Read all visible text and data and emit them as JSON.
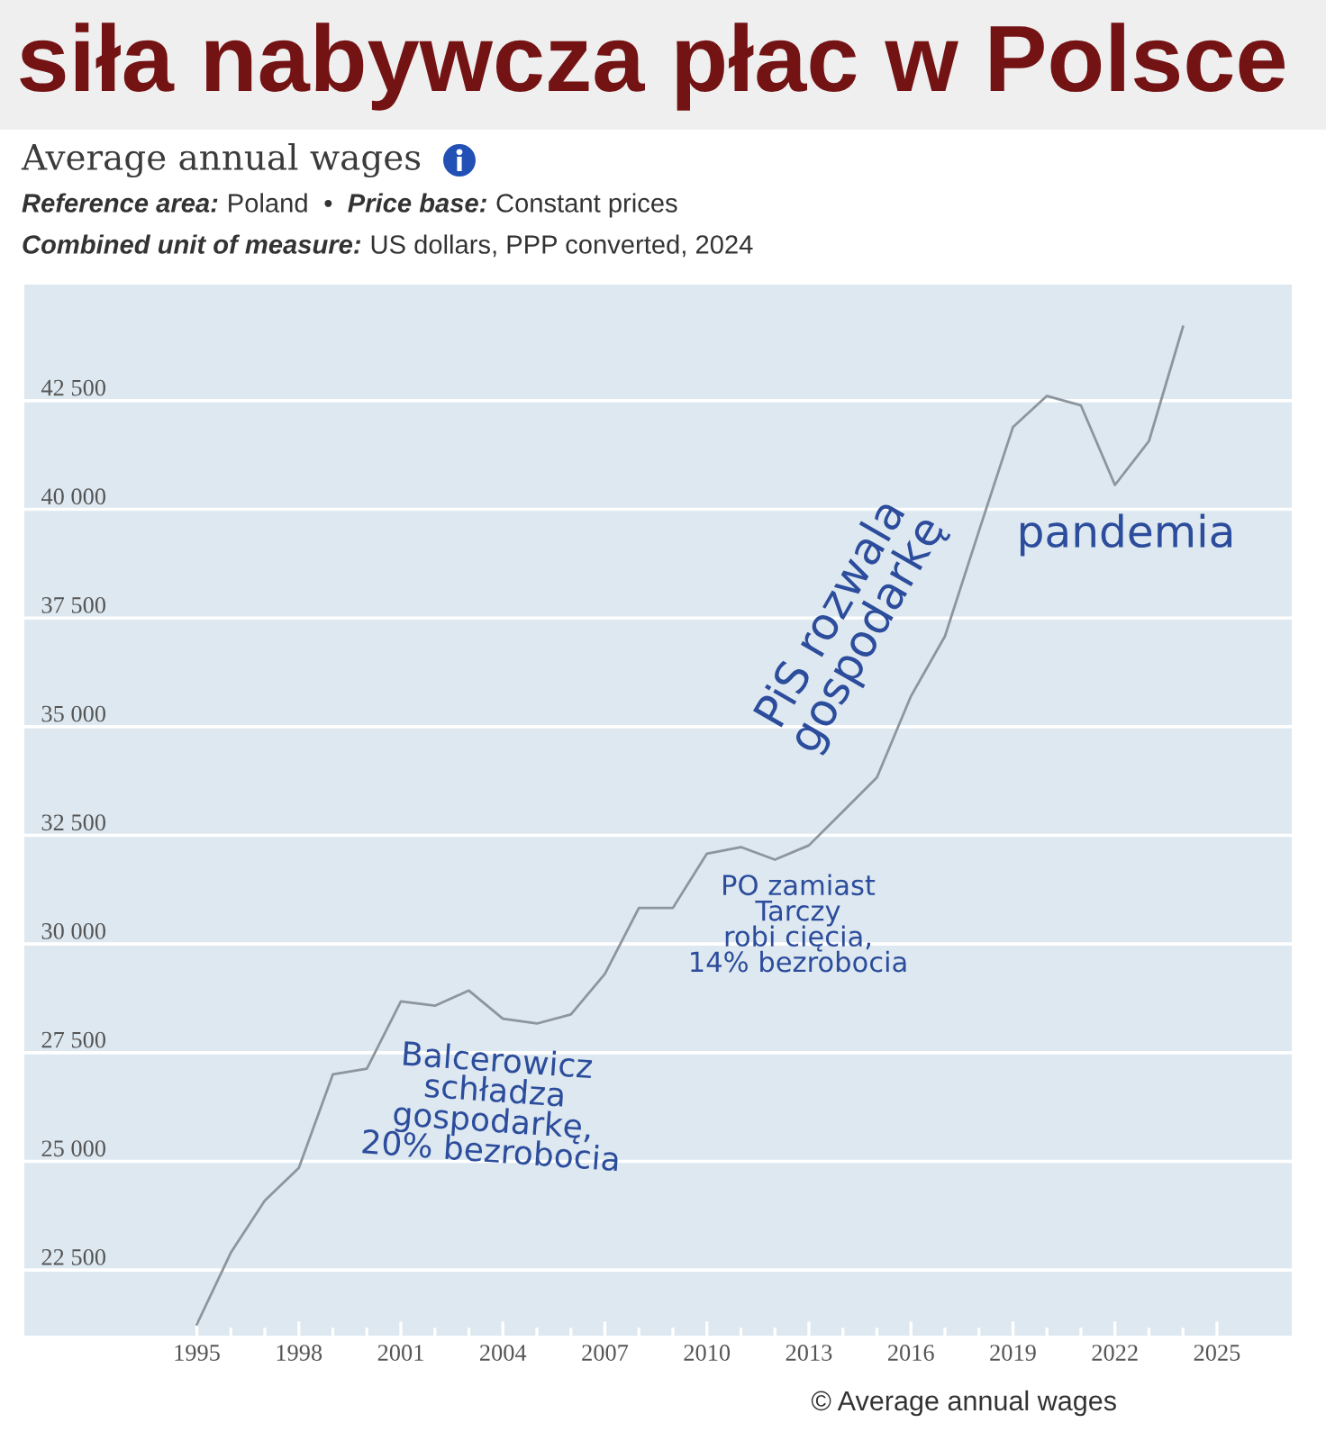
{
  "chart_data": {
    "type": "line",
    "title": "siła nabywcza płac w Polsce",
    "subtitle": "Average annual wages",
    "annotations": [
      "Reference area: Poland • Price base: Constant prices",
      "Combined unit of measure: US dollars, PPP converted, 2024",
      "Balcerowicz\nschładza\ngospodarkę,\n20% bezrobocia",
      "PO zamiast\nTarczy\nrobi cięcia,\n14% bezrobocia",
      "PiS rozwala\ngospodarkę",
      "pandemia",
      "© Average annual wages"
    ],
    "x": [
      1995,
      1996,
      1997,
      1998,
      1999,
      2000,
      2001,
      2002,
      2003,
      2004,
      2005,
      2006,
      2007,
      2008,
      2009,
      2010,
      2011,
      2012,
      2013,
      2014,
      2015,
      2016,
      2017,
      2018,
      2019,
      2020,
      2021,
      2022,
      2023,
      2024
    ],
    "series": [
      {
        "color": "#8d959e",
        "values": [
          21250,
          22900,
          24100,
          24850,
          27000,
          27130,
          28680,
          28580,
          28930,
          28280,
          28170,
          28380,
          29310,
          30830,
          30830,
          32080,
          32230,
          31940,
          32270,
          33050,
          33830,
          35700,
          37080,
          39500,
          41890,
          42610,
          42390,
          40560,
          41570,
          44200
        ]
      }
    ],
    "xlim": [
      1989.9,
      2027.2
    ],
    "ylim": [
      20970,
      45170
    ],
    "xticks": [
      1995,
      {
        "value": 1996,
        "label": null
      },
      {
        "value": 1997,
        "label": null
      },
      1998,
      {
        "value": 1999,
        "label": null
      },
      {
        "value": 2000,
        "label": null
      },
      2001,
      {
        "value": 2002,
        "label": null
      },
      {
        "value": 2003,
        "label": null
      },
      2004,
      {
        "value": 2005,
        "label": null
      },
      {
        "value": 2006,
        "label": null
      },
      2007,
      {
        "value": 2008,
        "label": null
      },
      {
        "value": 2009,
        "label": null
      },
      2010,
      {
        "value": 2011,
        "label": null
      },
      {
        "value": 2012,
        "label": null
      },
      2013,
      {
        "value": 2014,
        "label": null
      },
      {
        "value": 2015,
        "label": null
      },
      2016,
      {
        "value": 2017,
        "label": null
      },
      {
        "value": 2018,
        "label": null
      },
      2019,
      {
        "value": 2020,
        "label": null
      },
      {
        "value": 2021,
        "label": null
      },
      2022,
      {
        "value": 2023,
        "label": null
      },
      {
        "value": 2024,
        "label": null
      },
      2025
    ],
    "yticks": [
      {
        "value": 22500,
        "label": "22 500"
      },
      {
        "value": 25000,
        "label": "25 000"
      },
      {
        "value": 27500,
        "label": "27 500"
      },
      {
        "value": 30000,
        "label": "30 000"
      },
      {
        "value": 32500,
        "label": "32 500"
      },
      {
        "value": 35000,
        "label": "35 000"
      },
      {
        "value": 37500,
        "label": "37 500"
      },
      {
        "value": 40000,
        "label": "40 000"
      },
      {
        "value": 42500,
        "label": "42 500"
      }
    ],
    "grid": "y",
    "marker": "none",
    "line_style": "solid"
  }
}
